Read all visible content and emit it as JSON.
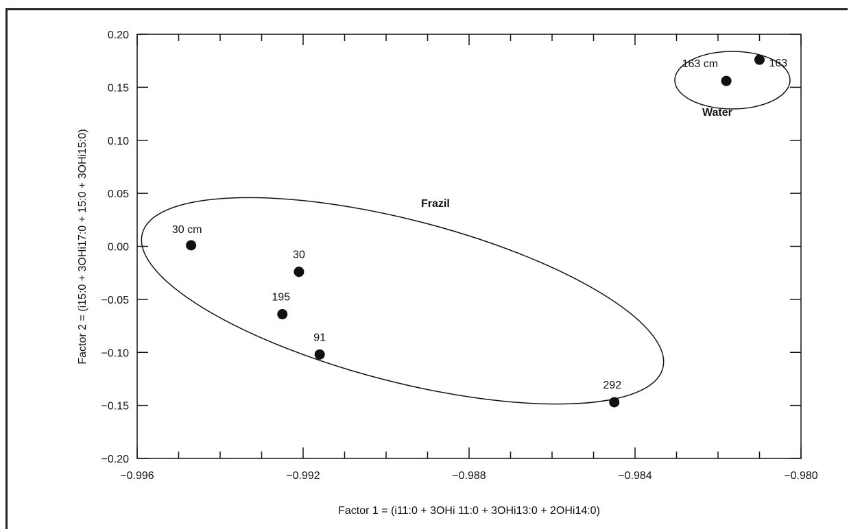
{
  "chart_data": {
    "type": "scatter",
    "xlabel": "Factor 1 = (i11:0 + 3OHi 11:0 + 3OHi13:0 + 2OHi14:0)",
    "ylabel": "Factor 2 = (i15:0 + 3OHi17:0 + 15:0 + 3OHi15:0)",
    "xlim": [
      -0.996,
      -0.98
    ],
    "ylim": [
      -0.2,
      0.2
    ],
    "x_ticks": [
      "−0.996",
      "−0.992",
      "−0.988",
      "−0.984",
      "−0.980"
    ],
    "x_tick_values": [
      -0.996,
      -0.992,
      -0.988,
      -0.984,
      -0.98
    ],
    "y_ticks": [
      "0.20",
      "0.15",
      "0.10",
      "0.05",
      "0.00",
      "−0.05",
      "−0.10",
      "−0.15",
      "−0.20"
    ],
    "y_tick_values": [
      0.2,
      0.15,
      0.1,
      0.05,
      0.0,
      -0.05,
      -0.1,
      -0.15,
      -0.2
    ],
    "points": [
      {
        "label": "30 cm",
        "x": -0.9947,
        "y": 0.001,
        "group": "Frazil"
      },
      {
        "label": "30",
        "x": -0.9921,
        "y": -0.024,
        "group": "Frazil"
      },
      {
        "label": "195",
        "x": -0.9925,
        "y": -0.064,
        "group": "Frazil"
      },
      {
        "label": "91",
        "x": -0.9916,
        "y": -0.102,
        "group": "Frazil"
      },
      {
        "label": "292",
        "x": -0.9845,
        "y": -0.147,
        "group": "Frazil"
      },
      {
        "label": "163 cm",
        "x": -0.9818,
        "y": 0.156,
        "group": "Water"
      },
      {
        "label": "163",
        "x": -0.981,
        "y": 0.176,
        "group": "Water"
      }
    ],
    "groups": [
      {
        "name": "Frazil",
        "label": "Frazil"
      },
      {
        "name": "Water",
        "label": "Water"
      }
    ],
    "grid": false,
    "marker_color": "#111111"
  }
}
